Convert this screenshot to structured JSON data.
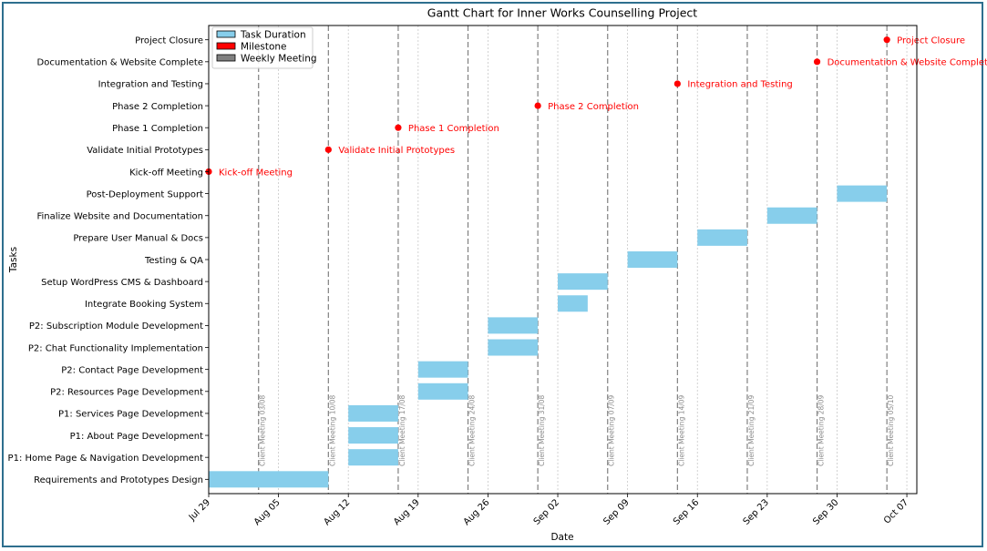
{
  "chart_data": {
    "type": "gantt",
    "title": "Gantt Chart for Inner Works Counselling Project",
    "xlabel": "Date",
    "ylabel": "Tasks",
    "xlim": [
      "2024-07-29",
      "2024-10-08"
    ],
    "x_ticks": [
      {
        "date": "2024-07-29",
        "label": "Jul 29"
      },
      {
        "date": "2024-08-05",
        "label": "Aug 05"
      },
      {
        "date": "2024-08-12",
        "label": "Aug 12"
      },
      {
        "date": "2024-08-19",
        "label": "Aug 19"
      },
      {
        "date": "2024-08-26",
        "label": "Aug 26"
      },
      {
        "date": "2024-09-02",
        "label": "Sep 02"
      },
      {
        "date": "2024-09-09",
        "label": "Sep 09"
      },
      {
        "date": "2024-09-16",
        "label": "Sep 16"
      },
      {
        "date": "2024-09-23",
        "label": "Sep 23"
      },
      {
        "date": "2024-09-30",
        "label": "Sep 30"
      },
      {
        "date": "2024-10-07",
        "label": "Oct 07"
      }
    ],
    "legend": {
      "position": "top-left",
      "entries": [
        {
          "label": "Task Duration",
          "color": "#87ceeb"
        },
        {
          "label": "Milestone",
          "color": "#ff0000"
        },
        {
          "label": "Weekly Meeting",
          "color": "#808080"
        }
      ]
    },
    "tasks": [
      {
        "name": "Requirements and Prototypes Design",
        "start": "2024-07-29",
        "end": "2024-08-10"
      },
      {
        "name": "P1: Home Page & Navigation Development",
        "start": "2024-08-12",
        "end": "2024-08-17"
      },
      {
        "name": "P1: About Page Development",
        "start": "2024-08-12",
        "end": "2024-08-17"
      },
      {
        "name": "P1: Services Page Development",
        "start": "2024-08-12",
        "end": "2024-08-17"
      },
      {
        "name": "P2: Resources Page Development",
        "start": "2024-08-19",
        "end": "2024-08-24"
      },
      {
        "name": "P2: Contact Page Development",
        "start": "2024-08-19",
        "end": "2024-08-24"
      },
      {
        "name": "P2: Chat Functionality Implementation",
        "start": "2024-08-26",
        "end": "2024-08-31"
      },
      {
        "name": "P2: Subscription Module Development",
        "start": "2024-08-26",
        "end": "2024-08-31"
      },
      {
        "name": "Integrate Booking System",
        "start": "2024-09-02",
        "end": "2024-09-05"
      },
      {
        "name": "Setup WordPress CMS & Dashboard",
        "start": "2024-09-02",
        "end": "2024-09-07"
      },
      {
        "name": "Testing & QA",
        "start": "2024-09-09",
        "end": "2024-09-14"
      },
      {
        "name": "Prepare User Manual & Docs",
        "start": "2024-09-16",
        "end": "2024-09-21"
      },
      {
        "name": "Finalize Website and Documentation",
        "start": "2024-09-23",
        "end": "2024-09-28"
      },
      {
        "name": "Post-Deployment Support",
        "start": "2024-09-30",
        "end": "2024-10-05"
      }
    ],
    "milestones": [
      {
        "name": "Kick-off Meeting",
        "date": "2024-07-29",
        "label": "Kick-off Meeting"
      },
      {
        "name": "Validate Initial Prototypes",
        "date": "2024-08-10",
        "label": "Validate Initial Prototypes"
      },
      {
        "name": "Phase 1 Completion",
        "date": "2024-08-17",
        "label": "Phase 1 Completion"
      },
      {
        "name": "Phase 2 Completion",
        "date": "2024-08-31",
        "label": "Phase 2 Completion"
      },
      {
        "name": "Integration and Testing",
        "date": "2024-09-14",
        "label": "Integration and Testing"
      },
      {
        "name": "Documentation & Website Complete",
        "date": "2024-09-28",
        "label": "Documentation & Website Complete"
      },
      {
        "name": "Project Closure",
        "date": "2024-10-05",
        "label": "Project Closure"
      }
    ],
    "meetings": [
      {
        "date": "2024-08-03",
        "label": "Client Meeting 03/08"
      },
      {
        "date": "2024-08-10",
        "label": "Client Meeting 10/08"
      },
      {
        "date": "2024-08-17",
        "label": "Client Meeting 17/08"
      },
      {
        "date": "2024-08-24",
        "label": "Client Meeting 24/08"
      },
      {
        "date": "2024-08-31",
        "label": "Client Meeting 31/08"
      },
      {
        "date": "2024-09-07",
        "label": "Client Meeting 07/09"
      },
      {
        "date": "2024-09-14",
        "label": "Client Meeting 14/09"
      },
      {
        "date": "2024-09-21",
        "label": "Client Meeting 21/09"
      },
      {
        "date": "2024-09-28",
        "label": "Client Meeting 28/09"
      },
      {
        "date": "2024-10-05",
        "label": "Client Meeting 05/10"
      }
    ],
    "grid": {
      "x": false,
      "y": false
    },
    "colors": {
      "bar": "#87ceeb",
      "milestone": "#ff0000",
      "meeting_line": "#808080",
      "tick_grid": "#c8c8c8"
    }
  }
}
